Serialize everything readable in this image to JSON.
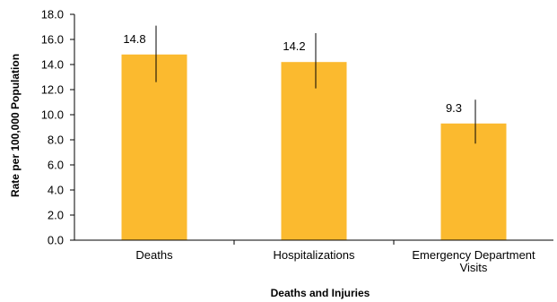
{
  "chart_data": {
    "type": "bar",
    "title": "",
    "xlabel": "Deaths and Injuries",
    "ylabel": "Rate per 100,000 Population",
    "ylim": [
      0,
      18
    ],
    "yticks": [
      0.0,
      2.0,
      4.0,
      6.0,
      8.0,
      10.0,
      12.0,
      14.0,
      16.0,
      18.0
    ],
    "ytick_labels": [
      "0.0",
      "2.0",
      "4.0",
      "6.0",
      "8.0",
      "10.0",
      "12.0",
      "14.0",
      "16.0",
      "18.0"
    ],
    "categories": [
      [
        "Deaths"
      ],
      [
        "Hospitalizations"
      ],
      [
        "Emergency Department",
        "Visits"
      ]
    ],
    "values": [
      14.8,
      14.2,
      9.3
    ],
    "value_labels": [
      "14.8",
      "14.2",
      "9.3"
    ],
    "error_bars": [
      {
        "low": 12.6,
        "high": 17.1
      },
      {
        "low": 12.1,
        "high": 16.5
      },
      {
        "low": 7.7,
        "high": 11.2
      }
    ],
    "grid": false,
    "legend": "none",
    "bar_color": "#FBBA2F",
    "error_bar_color": "#000000",
    "axis_color": "#000000"
  }
}
